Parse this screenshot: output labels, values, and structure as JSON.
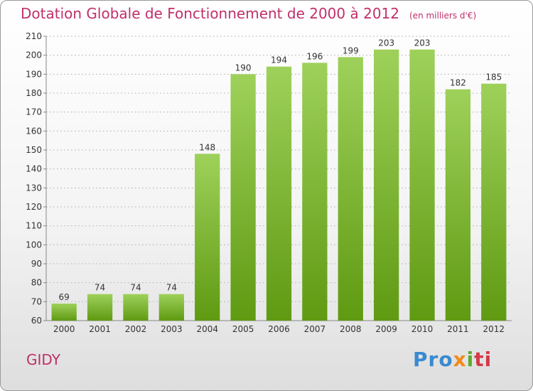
{
  "header": {
    "title": "Dotation Globale de Fonctionnement de 2000 à 2012",
    "unit": "(en milliers d'€)"
  },
  "commune": "GIDY",
  "logo": {
    "parts": [
      "Pro",
      "x",
      "i",
      "ti"
    ]
  },
  "colors": {
    "bar_light": "#9ed15a",
    "bar_dark": "#5f9a12",
    "title": "#c0306a"
  },
  "chart_data": {
    "type": "bar",
    "categories": [
      "2000",
      "2001",
      "2002",
      "2003",
      "2004",
      "2005",
      "2006",
      "2007",
      "2008",
      "2009",
      "2010",
      "2011",
      "2012"
    ],
    "values": [
      69,
      74,
      74,
      74,
      148,
      190,
      194,
      196,
      199,
      203,
      203,
      182,
      185
    ],
    "title": "Dotation Globale de Fonctionnement de 2000 à 2012",
    "ylabel": "",
    "xlabel": "",
    "ylim": [
      60,
      210
    ],
    "yticks": [
      60,
      70,
      80,
      90,
      100,
      110,
      120,
      130,
      140,
      150,
      160,
      170,
      180,
      190,
      200,
      210
    ],
    "grid": "horizontal dashed",
    "legend": "none"
  }
}
